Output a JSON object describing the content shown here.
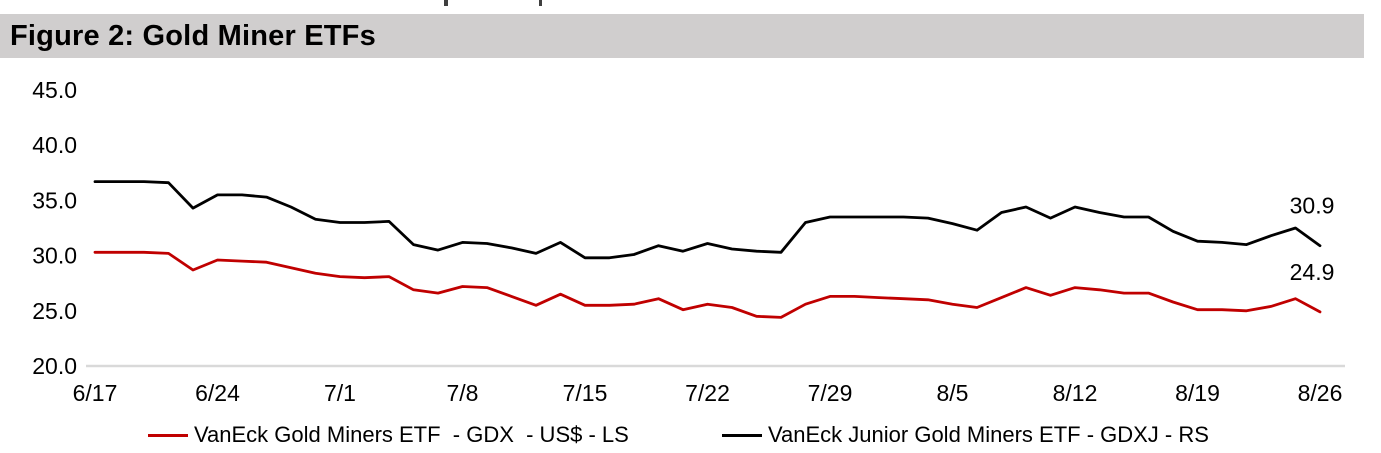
{
  "title": "Figure 2: Gold Miner ETFs",
  "chart_data": {
    "type": "line",
    "title": "Figure 2: Gold Miner ETFs",
    "xlabel": "",
    "ylabel": "",
    "ylim": [
      20,
      45
    ],
    "yticks": [
      "45.0",
      "40.0",
      "35.0",
      "30.0",
      "25.0",
      "20.0"
    ],
    "x_labels": [
      "6/17",
      "6/24",
      "7/1",
      "7/8",
      "7/15",
      "7/22",
      "7/29",
      "8/5",
      "8/12",
      "8/19",
      "8/26"
    ],
    "grid": false,
    "legend_position": "bottom",
    "axis_color": "#d9d9d9",
    "x": [
      "6/17",
      "6/18",
      "6/19",
      "6/20",
      "6/21",
      "6/24",
      "6/25",
      "6/26",
      "6/27",
      "6/28",
      "7/1",
      "7/2",
      "7/3",
      "7/4",
      "7/5",
      "7/8",
      "7/9",
      "7/10",
      "7/11",
      "7/12",
      "7/15",
      "7/16",
      "7/17",
      "7/18",
      "7/19",
      "7/22",
      "7/23",
      "7/24",
      "7/25",
      "7/26",
      "7/29",
      "7/30",
      "7/31",
      "8/1",
      "8/2",
      "8/5",
      "8/6",
      "8/7",
      "8/8",
      "8/9",
      "8/12",
      "8/13",
      "8/14",
      "8/15",
      "8/16",
      "8/19",
      "8/20",
      "8/21",
      "8/22",
      "8/23",
      "8/26"
    ],
    "series": [
      {
        "id": "gdx",
        "name": "VanEck Gold Miners ETF  - GDX  - US$ - LS",
        "color": "#c00000",
        "axis": "left",
        "end_label": "24.9",
        "values": [
          30.3,
          30.3,
          30.3,
          30.2,
          28.7,
          29.6,
          29.5,
          29.4,
          28.9,
          28.4,
          28.1,
          28.0,
          28.1,
          26.9,
          26.6,
          27.2,
          27.1,
          26.3,
          25.5,
          26.5,
          25.5,
          25.5,
          25.6,
          26.1,
          25.1,
          25.6,
          25.3,
          24.5,
          24.4,
          25.6,
          26.3,
          26.3,
          26.2,
          26.1,
          26.0,
          25.6,
          25.3,
          26.2,
          27.1,
          26.4,
          27.1,
          26.9,
          26.6,
          26.6,
          25.8,
          25.1,
          25.1,
          25.0,
          25.4,
          26.1,
          24.9
        ]
      },
      {
        "id": "gdxj",
        "name": "VanEck Junior Gold Miners ETF - GDXJ - RS",
        "color": "#000000",
        "axis": "right",
        "end_label": "30.9",
        "values": [
          36.7,
          36.7,
          36.7,
          36.6,
          34.3,
          35.5,
          35.5,
          35.3,
          34.4,
          33.3,
          33.0,
          33.0,
          33.1,
          31.0,
          30.5,
          31.2,
          31.1,
          30.7,
          30.2,
          31.2,
          29.8,
          29.8,
          30.1,
          30.9,
          30.4,
          31.1,
          30.6,
          30.4,
          30.3,
          33.0,
          33.5,
          33.5,
          33.5,
          33.5,
          33.4,
          32.9,
          32.3,
          33.9,
          34.4,
          33.4,
          34.4,
          33.9,
          33.5,
          33.5,
          32.2,
          31.3,
          31.2,
          31.0,
          31.8,
          32.5,
          30.9
        ]
      }
    ]
  }
}
